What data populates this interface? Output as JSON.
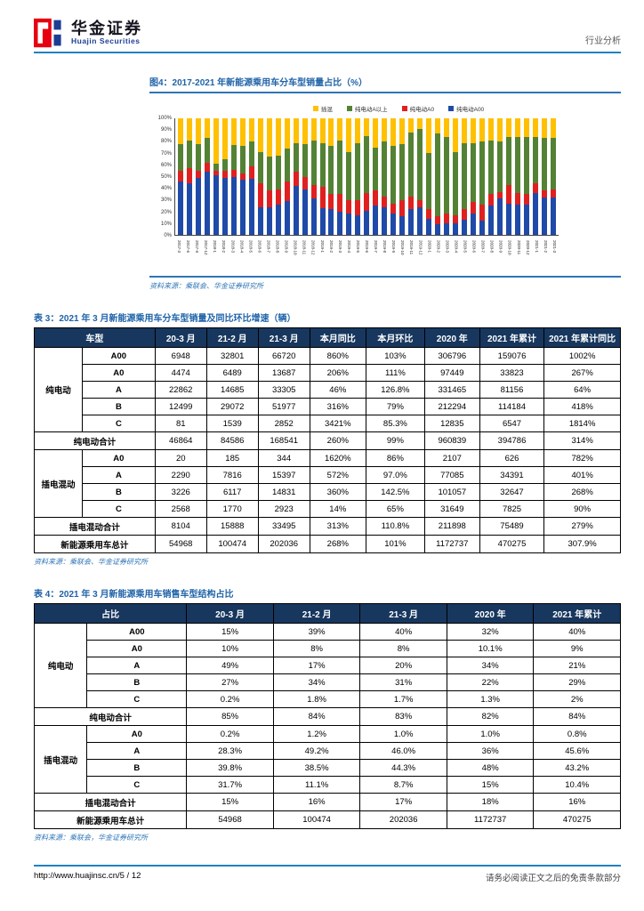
{
  "header": {
    "brand_cn": "华金证券",
    "brand_en": "Huajin Securities",
    "report_type": "行业分析"
  },
  "figure": {
    "title": "图4：2017-2021 年新能源乘用车分车型销量占比（%）",
    "source": "资料来源：乘联会、华金证券研究所",
    "chart_data": {
      "type": "bar",
      "subtype": "100%-stacked-bar",
      "title": "图4：2017-2021 年新能源乘用车分车型销量占比（%）",
      "ylim": [
        0,
        100
      ],
      "yticks": [
        "100%",
        "90%",
        "80%",
        "70%",
        "60%",
        "50%",
        "40%",
        "30%",
        "20%",
        "10%",
        "0%"
      ],
      "legend_position": "top",
      "grid": false,
      "stack_order_bottom_to_top": [
        "纯电动A00",
        "纯电动A0",
        "纯电动A以上",
        "插混"
      ],
      "categories": [
        "2017-3",
        "2017-6",
        "2017-9",
        "2017-12",
        "2018-1",
        "2018-2",
        "2018-3",
        "2018-4",
        "2018-5",
        "2018-6",
        "2018-7",
        "2018-8",
        "2018-9",
        "2018-10",
        "2018-11",
        "2018-12",
        "2019-1",
        "2019-2",
        "2019-3",
        "2019-4",
        "2019-5",
        "2019-6",
        "2019-7",
        "2019-8",
        "2019-9",
        "2019-10",
        "2019-11",
        "2019-12",
        "2020-1",
        "2020-2",
        "2020-3",
        "2020-4",
        "2020-5",
        "2020-6",
        "2020-7",
        "2020-8",
        "2020-9",
        "2020-10",
        "2020-11",
        "2020-12",
        "2021-1",
        "2021-2",
        "2021-3"
      ],
      "series": [
        {
          "name": "插混",
          "color": "#FFC000",
          "values": [
            22,
            19,
            22,
            17,
            39,
            35,
            23,
            24,
            20,
            29,
            33,
            32,
            26,
            21,
            22,
            19,
            21,
            24,
            19,
            29,
            21,
            15,
            25,
            20,
            24,
            22,
            12,
            9,
            30,
            13,
            16,
            29,
            21,
            21,
            20,
            19,
            20,
            16,
            16,
            16,
            16,
            17,
            17
          ]
        },
        {
          "name": "纯电动A以上",
          "color": "#548235",
          "values": [
            23,
            24,
            23,
            21,
            6,
            10,
            21,
            23,
            21,
            27,
            29,
            29,
            28,
            25,
            28,
            38,
            38,
            41,
            46,
            41,
            49,
            49,
            37,
            47,
            49,
            48,
            55,
            61,
            48,
            71,
            66,
            54,
            57,
            51,
            54,
            46,
            43,
            41,
            48,
            49,
            40,
            45,
            44
          ]
        },
        {
          "name": "纯电动A0",
          "color": "#E02020",
          "values": [
            9,
            13,
            6,
            8,
            4,
            6,
            6,
            6,
            11,
            20,
            14,
            13,
            17,
            12,
            11,
            12,
            18,
            13,
            15,
            12,
            13,
            15,
            13,
            9,
            9,
            14,
            11,
            6,
            8,
            7,
            8,
            7,
            9,
            10,
            14,
            10,
            6,
            16,
            10,
            9,
            8,
            6,
            7
          ]
        },
        {
          "name": "纯电动A00",
          "color": "#1F4AA8",
          "values": [
            46,
            44,
            49,
            54,
            51,
            49,
            50,
            47,
            48,
            24,
            24,
            26,
            29,
            42,
            39,
            31,
            23,
            22,
            20,
            18,
            17,
            21,
            25,
            24,
            18,
            16,
            22,
            24,
            14,
            9,
            10,
            10,
            13,
            18,
            12,
            25,
            31,
            27,
            26,
            26,
            36,
            32,
            32
          ]
        }
      ]
    }
  },
  "table3": {
    "title": "表 3：2021 年 3 月新能源乘用车分车型销量及同比环比增速（辆）",
    "source": "资料来源：乘联会、华金证券研究所",
    "corner_label": "车型",
    "value_headers": [
      "20-3 月",
      "21-2 月",
      "21-3 月",
      "本月同比",
      "本月环比",
      "2020 年",
      "2021 年累计",
      "2021 年累计同比"
    ],
    "sections": [
      {
        "group_label": "纯电动",
        "rows": [
          {
            "label": "A00",
            "values": [
              "6948",
              "32801",
              "66720",
              "860%",
              "103%",
              "306796",
              "159076",
              "1002%"
            ]
          },
          {
            "label": "A0",
            "values": [
              "4474",
              "6489",
              "13687",
              "206%",
              "111%",
              "97449",
              "33823",
              "267%"
            ]
          },
          {
            "label": "A",
            "values": [
              "22862",
              "14685",
              "33305",
              "46%",
              "126.8%",
              "331465",
              "81156",
              "64%"
            ]
          },
          {
            "label": "B",
            "values": [
              "12499",
              "29072",
              "51977",
              "316%",
              "79%",
              "212294",
              "114184",
              "418%"
            ]
          },
          {
            "label": "C",
            "values": [
              "81",
              "1539",
              "2852",
              "3421%",
              "85.3%",
              "12835",
              "6547",
              "1814%"
            ]
          }
        ],
        "subtotal": {
          "label": "纯电动合计",
          "values": [
            "46864",
            "84586",
            "168541",
            "260%",
            "99%",
            "960839",
            "394786",
            "314%"
          ]
        }
      },
      {
        "group_label": "插电混动",
        "rows": [
          {
            "label": "A0",
            "values": [
              "20",
              "185",
              "344",
              "1620%",
              "86%",
              "2107",
              "626",
              "782%"
            ]
          },
          {
            "label": "A",
            "values": [
              "2290",
              "7816",
              "15397",
              "572%",
              "97.0%",
              "77085",
              "34391",
              "401%"
            ]
          },
          {
            "label": "B",
            "values": [
              "3226",
              "6117",
              "14831",
              "360%",
              "142.5%",
              "101057",
              "32647",
              "268%"
            ]
          },
          {
            "label": "C",
            "values": [
              "2568",
              "1770",
              "2923",
              "14%",
              "65%",
              "31649",
              "7825",
              "90%"
            ]
          }
        ],
        "subtotal": {
          "label": "插电混动合计",
          "values": [
            "8104",
            "15888",
            "33495",
            "313%",
            "110.8%",
            "211898",
            "75489",
            "279%"
          ]
        }
      }
    ],
    "total_row": {
      "label": "新能源乘用车总计",
      "values": [
        "54968",
        "100474",
        "202036",
        "268%",
        "101%",
        "1172737",
        "470275",
        "307.9%"
      ]
    }
  },
  "table4": {
    "title": "表 4：2021 年 3 月新能源乘用车销售车型结构占比",
    "source": "资料来源：乘联会，华金证券研究所",
    "corner_label": "占比",
    "value_headers": [
      "20-3 月",
      "21-2 月",
      "21-3 月",
      "2020 年",
      "2021 年累计"
    ],
    "sections": [
      {
        "group_label": "纯电动",
        "rows": [
          {
            "label": "A00",
            "values": [
              "15%",
              "39%",
              "40%",
              "32%",
              "40%"
            ]
          },
          {
            "label": "A0",
            "values": [
              "10%",
              "8%",
              "8%",
              "10.1%",
              "9%"
            ]
          },
          {
            "label": "A",
            "values": [
              "49%",
              "17%",
              "20%",
              "34%",
              "21%"
            ]
          },
          {
            "label": "B",
            "values": [
              "27%",
              "34%",
              "31%",
              "22%",
              "29%"
            ]
          },
          {
            "label": "C",
            "values": [
              "0.2%",
              "1.8%",
              "1.7%",
              "1.3%",
              "2%"
            ]
          }
        ],
        "subtotal": {
          "label": "纯电动合计",
          "values": [
            "85%",
            "84%",
            "83%",
            "82%",
            "84%"
          ]
        }
      },
      {
        "group_label": "插电混动",
        "rows": [
          {
            "label": "A0",
            "values": [
              "0.2%",
              "1.2%",
              "1.0%",
              "1.0%",
              "0.8%"
            ]
          },
          {
            "label": "A",
            "values": [
              "28.3%",
              "49.2%",
              "46.0%",
              "36%",
              "45.6%"
            ]
          },
          {
            "label": "B",
            "values": [
              "39.8%",
              "38.5%",
              "44.3%",
              "48%",
              "43.2%"
            ]
          },
          {
            "label": "C",
            "values": [
              "31.7%",
              "11.1%",
              "8.7%",
              "15%",
              "10.4%"
            ]
          }
        ],
        "subtotal": {
          "label": "插电混动合计",
          "values": [
            "15%",
            "16%",
            "17%",
            "18%",
            "16%"
          ]
        }
      }
    ],
    "total_row": {
      "label": "新能源乘用车总计",
      "values": [
        "54968",
        "100474",
        "202036",
        "1172737",
        "470275"
      ]
    }
  },
  "footer": {
    "left": "http://www.huajinsc.cn/5 / 12",
    "right": "请务必阅读正文之后的免责条款部分"
  }
}
